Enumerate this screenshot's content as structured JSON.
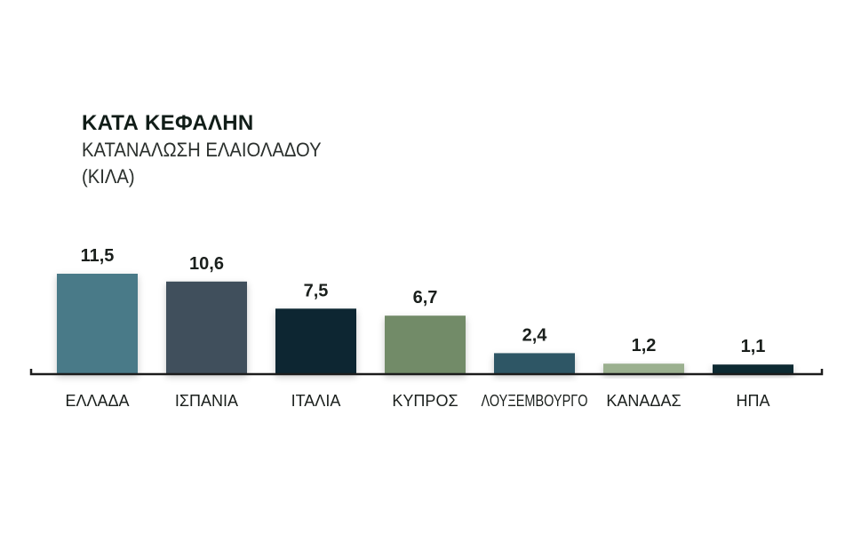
{
  "chart_data": {
    "type": "bar",
    "title": "ΚΑΤΑ ΚΕΦΑΛΗΝ",
    "subtitle_line1": "ΚΑΤΑΝΑΛΩΣΗ ΕΛΑΙΟΛΑΔΟΥ",
    "subtitle_line2": "(ΚΙΛΑ)",
    "categories": [
      "ΕΛΛΑΔΑ",
      "ΙΣΠΑΝΙΑ",
      "ΙΤΑΛΙΑ",
      "ΚΥΠΡΟΣ",
      "ΛΟΥΞΕΜΒΟΥΡΓΟ",
      "ΚΑΝΑΔΑΣ",
      "ΗΠΑ"
    ],
    "values": [
      11.5,
      10.6,
      7.5,
      6.7,
      2.4,
      1.2,
      1.1
    ],
    "value_labels": [
      "11,5",
      "10,6",
      "7,5",
      "6,7",
      "2,4",
      "1,2",
      "1,1"
    ],
    "bar_colors": [
      "#487a88",
      "#3f4f5c",
      "#0f2530",
      "#728b68",
      "#2d5665",
      "#9bb08f",
      "#0e2a33"
    ],
    "ylim": [
      0,
      11.5
    ],
    "grid": false,
    "legend": "none"
  }
}
